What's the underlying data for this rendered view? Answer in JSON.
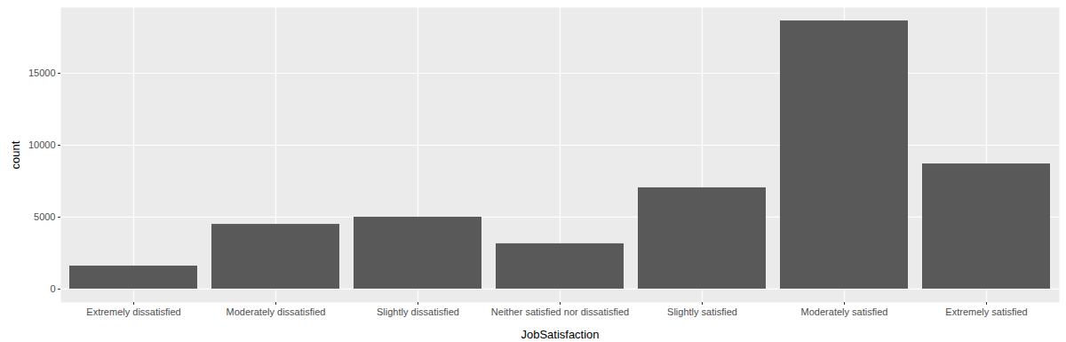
{
  "chart_data": {
    "type": "bar",
    "x_label": "JobSatisfaction",
    "y_label": "count",
    "categories": [
      "Extremely dissatisfied",
      "Moderately dissatisfied",
      "Slightly dissatisfied",
      "Neither satisfied nor dissatisfied",
      "Slightly satisfied",
      "Moderately satisfied",
      "Extremely satisfied"
    ],
    "values": [
      1600,
      4500,
      5000,
      3150,
      7040,
      18640,
      8700
    ],
    "color": "#595959",
    "ylim": [
      -930,
      19570
    ],
    "yticks": [
      0,
      5000,
      10000,
      15000
    ],
    "grid": true
  }
}
